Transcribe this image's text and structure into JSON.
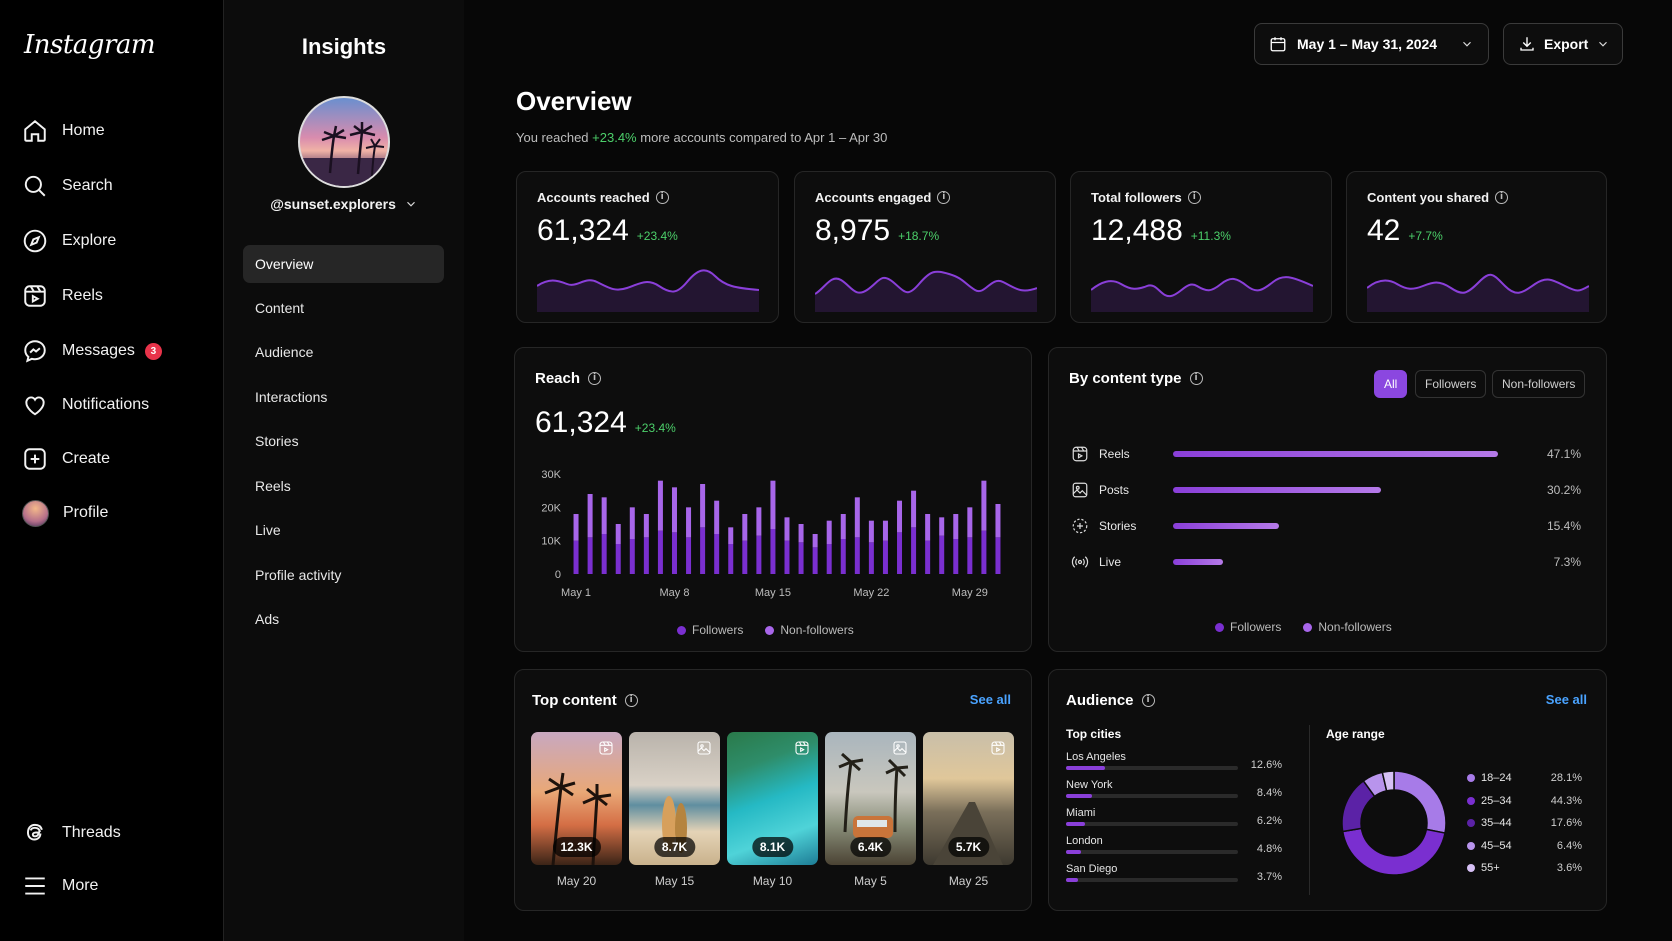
{
  "brand": "Instagram",
  "nav": {
    "items": [
      {
        "label": "Home",
        "icon": "home-icon"
      },
      {
        "label": "Search",
        "icon": "search-icon"
      },
      {
        "label": "Explore",
        "icon": "compass-icon"
      },
      {
        "label": "Reels",
        "icon": "reels-icon"
      },
      {
        "label": "Messages",
        "icon": "messenger-icon",
        "badge": "3"
      },
      {
        "label": "Notifications",
        "icon": "heart-icon"
      },
      {
        "label": "Create",
        "icon": "plus-square-icon"
      },
      {
        "label": "Profile",
        "icon": "avatar"
      }
    ],
    "bottom": [
      {
        "label": "Threads",
        "icon": "threads-icon"
      },
      {
        "label": "More",
        "icon": "hamburger-icon"
      }
    ]
  },
  "insights": {
    "title": "Insights",
    "handle": "@sunset.explorers",
    "menu": [
      "Overview",
      "Content",
      "Audience",
      "Interactions",
      "Stories",
      "Reels",
      "Live",
      "Profile activity",
      "Ads"
    ],
    "active": "Overview"
  },
  "header": {
    "date_range": "May 1 – May 31, 2024",
    "export": "Export"
  },
  "overview": {
    "title": "Overview",
    "sub_prefix": "You reached",
    "sub_delta": "+23.4%",
    "sub_suffix": "more accounts compared to Apr 1 – Apr 30"
  },
  "stats": [
    {
      "label": "Accounts reached",
      "value": "61,324",
      "delta": "+23.4%"
    },
    {
      "label": "Accounts engaged",
      "value": "8,975",
      "delta": "+18.7%"
    },
    {
      "label": "Total followers",
      "value": "12,488",
      "delta": "+11.3%"
    },
    {
      "label": "Content you shared",
      "value": "42",
      "delta": "+7.7%"
    }
  ],
  "reach": {
    "title": "Reach",
    "value": "61,324",
    "delta": "+23.4%",
    "legend": [
      "Followers",
      "Non-followers"
    ]
  },
  "chart_data": {
    "type": "bar",
    "title": "Reach",
    "ylim": [
      0,
      30000
    ],
    "yticks": [
      "30K",
      "20K",
      "10K",
      "0"
    ],
    "xticks": [
      "May 1",
      "May 8",
      "May 15",
      "May 22",
      "May 29"
    ],
    "categories": [
      "May 1",
      "May 2",
      "May 3",
      "May 4",
      "May 5",
      "May 6",
      "May 7",
      "May 8",
      "May 9",
      "May 10",
      "May 11",
      "May 12",
      "May 13",
      "May 14",
      "May 15",
      "May 16",
      "May 17",
      "May 18",
      "May 19",
      "May 20",
      "May 21",
      "May 22",
      "May 23",
      "May 24",
      "May 25",
      "May 26",
      "May 27",
      "May 28",
      "May 29",
      "May 30",
      "May 31"
    ],
    "series": [
      {
        "name": "Followers",
        "values": [
          10000,
          11000,
          12000,
          9000,
          10500,
          11000,
          13000,
          12500,
          11000,
          14000,
          12000,
          9000,
          10000,
          11500,
          13500,
          10000,
          9500,
          8000,
          9000,
          10500,
          11000,
          9500,
          10000,
          12500,
          14000,
          10000,
          11500,
          10500,
          11000,
          13000,
          11000
        ]
      },
      {
        "name": "Non-followers",
        "values": [
          8000,
          13000,
          11000,
          6000,
          9500,
          7000,
          15000,
          13500,
          9000,
          13000,
          10000,
          5000,
          8000,
          8500,
          14500,
          7000,
          5500,
          4000,
          7000,
          7500,
          12000,
          6500,
          6000,
          9500,
          11000,
          8000,
          5500,
          7500,
          9000,
          15000,
          10000
        ]
      }
    ],
    "colors": {
      "Followers": "#7a2fd0",
      "Non-followers": "#a866ea"
    }
  },
  "content_type": {
    "title": "By content type",
    "tabs": [
      "All",
      "Followers",
      "Non-followers"
    ],
    "active_tab": "All",
    "rows": [
      {
        "label": "Reels",
        "pct": "47.1%",
        "value": 47.1,
        "icon": "reels-icon"
      },
      {
        "label": "Posts",
        "pct": "30.2%",
        "value": 30.2,
        "icon": "image-icon"
      },
      {
        "label": "Stories",
        "pct": "15.4%",
        "value": 15.4,
        "icon": "stories-icon"
      },
      {
        "label": "Live",
        "pct": "7.3%",
        "value": 7.3,
        "icon": "live-icon"
      }
    ],
    "legend": [
      "Followers",
      "Non-followers"
    ]
  },
  "top_content": {
    "title": "Top content",
    "see_all": "See all",
    "items": [
      {
        "value": "12.3K",
        "date": "May 20",
        "icon": "reels-icon"
      },
      {
        "value": "8.7K",
        "date": "May 15",
        "icon": "image-icon"
      },
      {
        "value": "8.1K",
        "date": "May 10",
        "icon": "reels-icon"
      },
      {
        "value": "6.4K",
        "date": "May 5",
        "icon": "image-icon"
      },
      {
        "value": "5.7K",
        "date": "May 25",
        "icon": "reels-icon"
      }
    ]
  },
  "audience": {
    "title": "Audience",
    "see_all": "See all",
    "cities_title": "Top cities",
    "cities": [
      {
        "name": "Los Angeles",
        "pct": "12.6%",
        "value": 12.6
      },
      {
        "name": "New York",
        "pct": "8.4%",
        "value": 8.4
      },
      {
        "name": "Miami",
        "pct": "6.2%",
        "value": 6.2
      },
      {
        "name": "London",
        "pct": "4.8%",
        "value": 4.8
      },
      {
        "name": "San Diego",
        "pct": "3.7%",
        "value": 3.7
      }
    ],
    "age_title": "Age range",
    "ages": [
      {
        "label": "18–24",
        "pct": "28.1%",
        "value": 28.1,
        "color": "#a77be8"
      },
      {
        "label": "25–34",
        "pct": "44.3%",
        "value": 44.3,
        "color": "#7a2fd0"
      },
      {
        "label": "35–44",
        "pct": "17.6%",
        "value": 17.6,
        "color": "#5b22a6"
      },
      {
        "label": "45–54",
        "pct": "6.4%",
        "value": 6.4,
        "color": "#b894ec"
      },
      {
        "label": "55+",
        "pct": "3.6%",
        "value": 3.6,
        "color": "#d6c0f5"
      }
    ]
  }
}
